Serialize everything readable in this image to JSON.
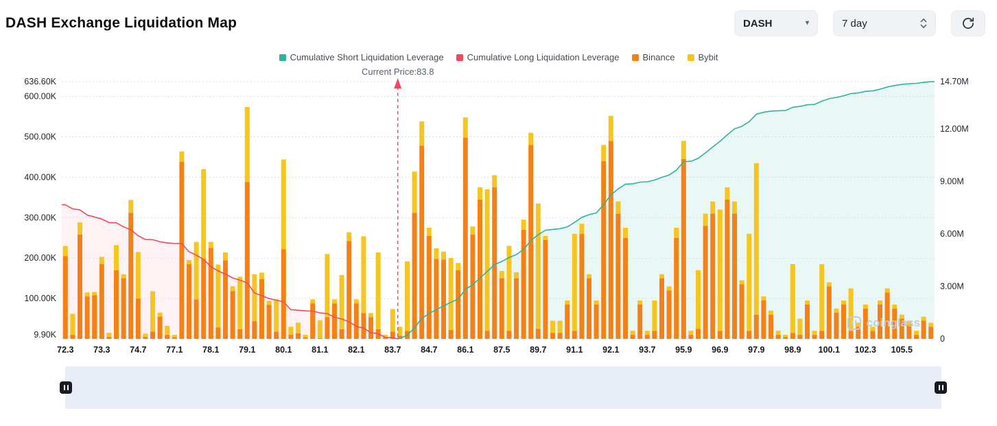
{
  "header": {
    "title": "DASH Exchange Liquidation Map",
    "symbol_select": {
      "value": "DASH"
    },
    "period_select": {
      "value": "7 day"
    },
    "refresh_label": "refresh"
  },
  "chart": {
    "legend": [
      {
        "label": "Cumulative Short Liquidation Leverage",
        "color": "#2BB3A2"
      },
      {
        "label": "Cumulative Long Liquidation Leverage",
        "color": "#F5475D"
      },
      {
        "label": "Binance",
        "color": "#F78014"
      },
      {
        "label": "Bybit",
        "color": "#F8C41E"
      }
    ],
    "current_price_label": "Current Price:83.8",
    "watermark": "coinglass"
  },
  "chart_data": {
    "type": "bar",
    "title": "DASH Exchange Liquidation Map",
    "x_axis": {
      "tick_labels": [
        "72.3",
        "73.3",
        "74.7",
        "77.1",
        "78.1",
        "79.1",
        "80.1",
        "81.1",
        "82.1",
        "83.7",
        "84.7",
        "86.1",
        "87.5",
        "89.7",
        "91.1",
        "92.1",
        "93.7",
        "95.9",
        "96.9",
        "97.9",
        "98.9",
        "100.1",
        "102.3",
        "105.5"
      ],
      "tick_every": 5,
      "num_slots": 120
    },
    "y_axis_left": {
      "unit": "K",
      "max": 636.6,
      "ticks": [
        {
          "label": "636.60K",
          "value": 636.6
        },
        {
          "label": "600.00K",
          "value": 600
        },
        {
          "label": "500.00K",
          "value": 500
        },
        {
          "label": "400.00K",
          "value": 400
        },
        {
          "label": "300.00K",
          "value": 300
        },
        {
          "label": "200.00K",
          "value": 200
        },
        {
          "label": "100.00K",
          "value": 100
        },
        {
          "label": "9.90K",
          "value": 9.9
        }
      ]
    },
    "y_axis_right": {
      "unit": "M",
      "max_k": 14700,
      "ticks": [
        {
          "label": "14.70M",
          "value": 14.7
        },
        {
          "label": "12.00M",
          "value": 12
        },
        {
          "label": "9.00M",
          "value": 9
        },
        {
          "label": "6.00M",
          "value": 6
        },
        {
          "label": "3.00M",
          "value": 3
        },
        {
          "label": "0",
          "value": 0
        }
      ]
    },
    "current_price": {
      "value": 83.8,
      "label": "Current Price:83.8",
      "slot": 45.7
    },
    "series": [
      {
        "name": "Binance",
        "type": "bar",
        "color": "#F78014",
        "values_k": [
          205,
          10,
          258,
          105,
          108,
          185,
          5,
          170,
          150,
          312,
          100,
          5,
          18,
          55,
          10,
          4,
          438,
          185,
          98,
          198,
          225,
          28,
          194,
          118,
          24,
          388,
          44,
          148,
          84,
          18,
          222,
          10,
          14,
          4,
          88,
          2,
          54,
          88,
          24,
          242,
          88,
          64,
          54,
          24,
          4,
          18,
          8,
          20,
          312,
          478,
          255,
          198,
          196,
          22,
          170,
          498,
          258,
          345,
          20,
          375,
          150,
          20,
          150,
          270,
          480,
          25,
          245,
          15,
          15,
          85,
          20,
          260,
          150,
          85,
          440,
          490,
          310,
          250,
          10,
          85,
          10,
          20,
          150,
          120,
          250,
          445,
          10,
          25,
          280,
          310,
          20,
          345,
          310,
          135,
          20,
          60,
          95,
          60,
          10,
          5,
          15,
          10,
          85,
          10,
          20,
          130,
          65,
          85,
          20,
          30,
          75,
          20,
          85,
          115,
          75,
          50,
          35,
          10,
          45,
          30
        ]
      },
      {
        "name": "Bybit",
        "type": "bar",
        "color": "#F8C41E",
        "values_k": [
          25,
          52,
          30,
          10,
          8,
          18,
          10,
          62,
          10,
          32,
          115,
          8,
          100,
          10,
          22,
          6,
          26,
          10,
          142,
          222,
          15,
          156,
          20,
          12,
          130,
          186,
          116,
          16,
          10,
          80,
          222,
          20,
          26,
          6,
          10,
          44,
          156,
          10,
          134,
          22,
          10,
          190,
          10,
          190,
          6,
          56,
          22,
          172,
          102,
          60,
          20,
          26,
          20,
          178,
          18,
          50,
          20,
          30,
          350,
          30,
          18,
          210,
          15,
          25,
          30,
          310,
          10,
          30,
          30,
          10,
          240,
          25,
          10,
          10,
          40,
          62,
          30,
          25,
          10,
          10,
          10,
          75,
          10,
          10,
          25,
          45,
          10,
          145,
          30,
          30,
          300,
          30,
          30,
          10,
          240,
          375,
          10,
          10,
          10,
          5,
          170,
          40,
          10,
          10,
          165,
          10,
          10,
          10,
          105,
          10,
          10,
          10,
          10,
          10,
          10,
          10,
          10,
          10,
          10,
          10
        ]
      },
      {
        "name": "Cumulative Long Liquidation Leverage",
        "type": "line",
        "color": "#F5475D",
        "fill": "rgba(245,71,93,0.07)",
        "derivation": "cumulative sum of bar totals from each price level up to current price (slots 0-45), plotted on right axis"
      },
      {
        "name": "Cumulative Short Liquidation Leverage",
        "type": "line",
        "color": "#2BB3A2",
        "fill": "rgba(43,179,162,0.10)",
        "derivation": "cumulative sum of bar totals from current price out to each price level (slots 46-119), plotted on right axis"
      }
    ]
  },
  "slider": {
    "type": "range-brush"
  }
}
